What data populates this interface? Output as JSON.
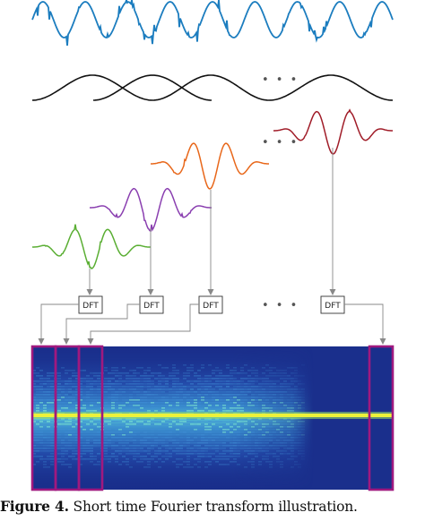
{
  "diagram": {
    "dft_labels": [
      "DFT",
      "DFT",
      "DFT",
      "DFT"
    ],
    "ellipsis": [
      "• • •",
      "• • •",
      "• • •",
      "• • •"
    ],
    "colors": {
      "signal": "#1c7dbf",
      "window": "#111111",
      "frame_1": "#5aae33",
      "frame_2": "#8a3fb0",
      "frame_3": "#e8671a",
      "frame_4": "#a01c28",
      "highlight": "#a0197f",
      "connector": "#888888",
      "spectrogram_bg": "#1a2f8c",
      "spectrogram_line": "#ecf23a"
    }
  },
  "caption": {
    "label": "Figure 4.",
    "text": " Short time Fourier transform illustration."
  }
}
